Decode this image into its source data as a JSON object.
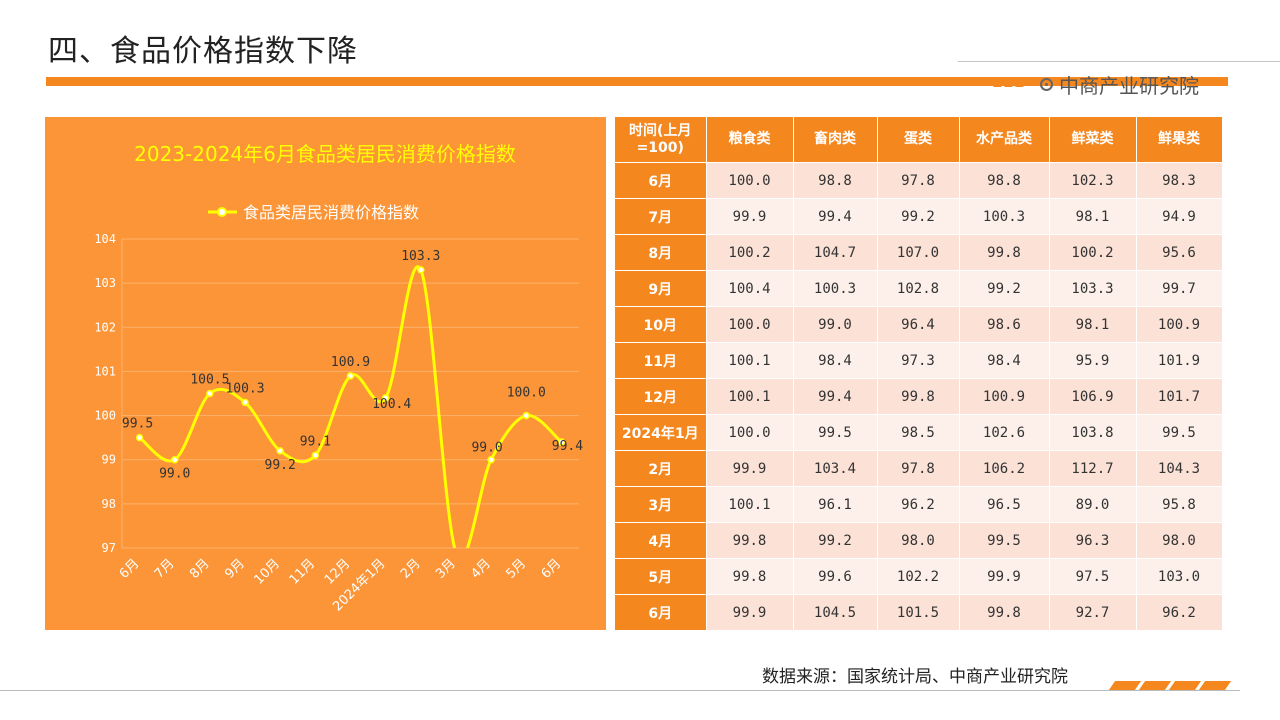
{
  "page": {
    "title": "四、食品价格指数下降",
    "brand": "中商产业研究院",
    "source": "数据来源：国家统计局、中商产业研究院"
  },
  "colors": {
    "accent": "#f5871f",
    "chart_bg": "#fb9538",
    "line": "#ffff00",
    "title_text": "#ffff00"
  },
  "chart_data": {
    "type": "line",
    "title": "2023-2024年6月食品类居民消费价格指数",
    "categories": [
      "6月",
      "7月",
      "8月",
      "9月",
      "10月",
      "11月",
      "12月",
      "2024年1月",
      "2月",
      "3月",
      "4月",
      "5月",
      "6月"
    ],
    "series": [
      {
        "name": "食品类居民消费价格指数",
        "values": [
          99.5,
          99.0,
          100.5,
          100.3,
          99.2,
          99.1,
          100.9,
          100.4,
          103.3,
          96.9,
          99.0,
          100.0,
          99.4
        ],
        "labels": [
          "99.5",
          "99.0",
          "100.5",
          "100.3",
          "99.2",
          "99.1",
          "100.9",
          "100.4",
          "103.3",
          "",
          "99.0",
          "100.0",
          "99.4"
        ]
      }
    ],
    "ylim": [
      97,
      104
    ],
    "yticks": [
      97,
      98,
      99,
      100,
      101,
      102,
      103,
      104
    ],
    "smooth": true,
    "legend_position": "top",
    "grid": true,
    "xlabel": "",
    "ylabel": ""
  },
  "table": {
    "headers": [
      "时间(上月=100)",
      "粮食类",
      "畜肉类",
      "蛋类",
      "水产品类",
      "鲜菜类",
      "鲜果类"
    ],
    "rows": [
      [
        "6月",
        "100.0",
        "98.8",
        "97.8",
        "98.8",
        "102.3",
        "98.3"
      ],
      [
        "7月",
        "99.9",
        "99.4",
        "99.2",
        "100.3",
        "98.1",
        "94.9"
      ],
      [
        "8月",
        "100.2",
        "104.7",
        "107.0",
        "99.8",
        "100.2",
        "95.6"
      ],
      [
        "9月",
        "100.4",
        "100.3",
        "102.8",
        "99.2",
        "103.3",
        "99.7"
      ],
      [
        "10月",
        "100.0",
        "99.0",
        "96.4",
        "98.6",
        "98.1",
        "100.9"
      ],
      [
        "11月",
        "100.1",
        "98.4",
        "97.3",
        "98.4",
        "95.9",
        "101.9"
      ],
      [
        "12月",
        "100.1",
        "99.4",
        "99.8",
        "100.9",
        "106.9",
        "101.7"
      ],
      [
        "2024年1月",
        "100.0",
        "99.5",
        "98.5",
        "102.6",
        "103.8",
        "99.5"
      ],
      [
        "2月",
        "99.9",
        "103.4",
        "97.8",
        "106.2",
        "112.7",
        "104.3"
      ],
      [
        "3月",
        "100.1",
        "96.1",
        "96.2",
        "96.5",
        "89.0",
        "95.8"
      ],
      [
        "4月",
        "99.8",
        "99.2",
        "98.0",
        "99.5",
        "96.3",
        "98.0"
      ],
      [
        "5月",
        "99.8",
        "99.6",
        "102.2",
        "99.9",
        "97.5",
        "103.0"
      ],
      [
        "6月",
        "99.9",
        "104.5",
        "101.5",
        "99.8",
        "92.7",
        "96.2"
      ]
    ]
  }
}
